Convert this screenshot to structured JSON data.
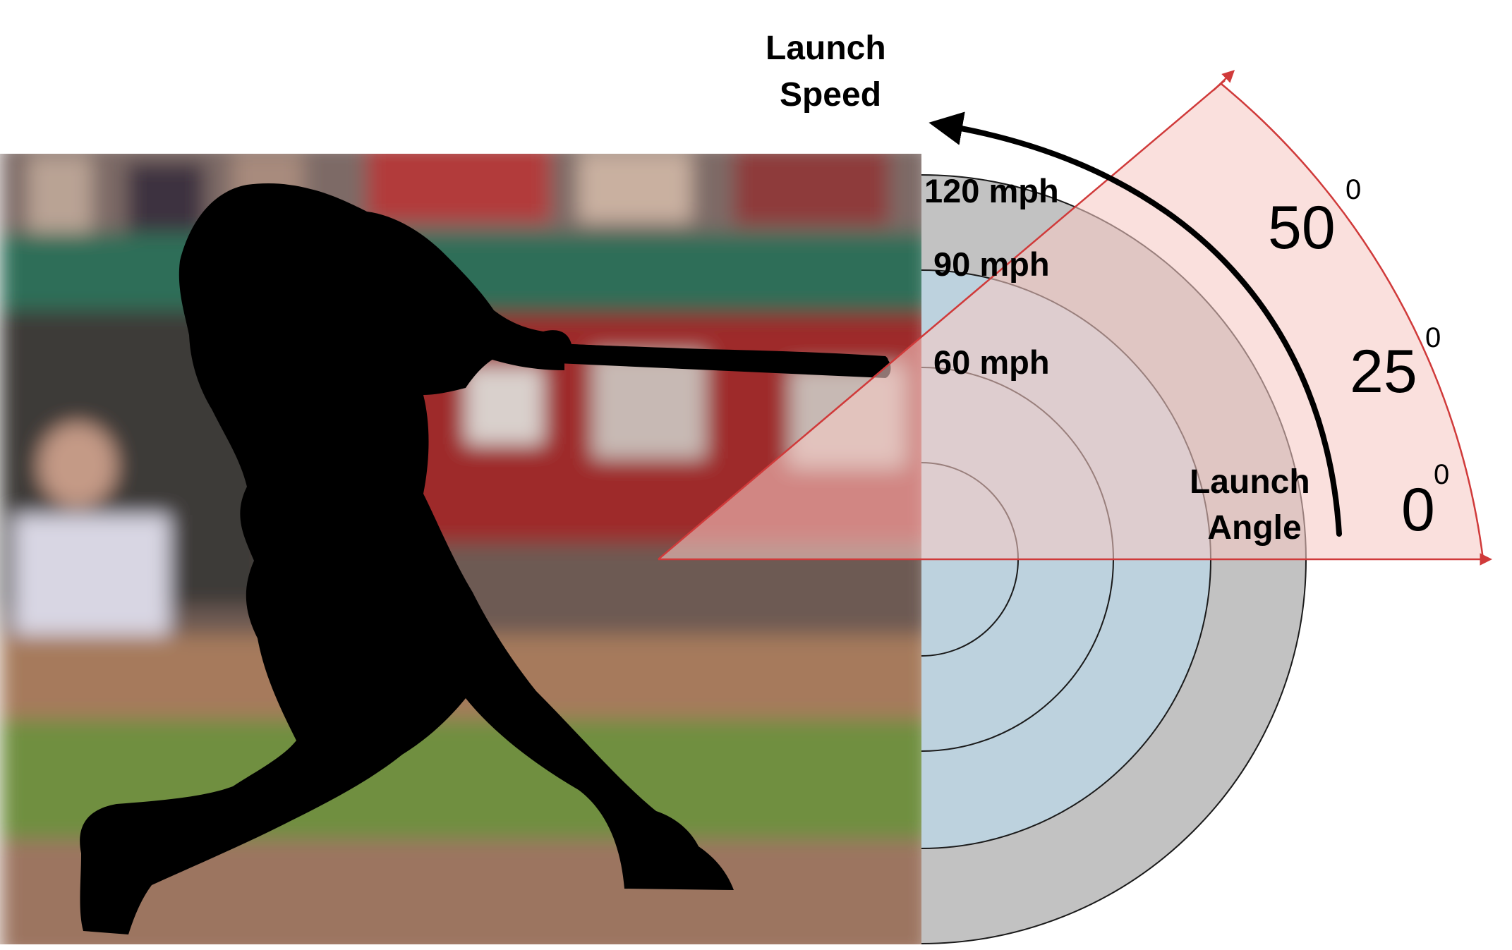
{
  "labels": {
    "launch_speed_line1": "Launch",
    "launch_speed_line2": "Speed",
    "launch_angle_line1": "Launch",
    "launch_angle_line2": "Angle"
  },
  "speed_rings": [
    {
      "label": "120 mph"
    },
    {
      "label": "90 mph"
    },
    {
      "label": "60 mph"
    }
  ],
  "angle_ticks": [
    {
      "value": "50",
      "superscript": "0"
    },
    {
      "value": "25",
      "superscript": "0"
    },
    {
      "value": "0",
      "superscript": "0"
    }
  ],
  "colors": {
    "outer_ring": "#c2c2c2",
    "inner_rings": "#bdd2de",
    "angle_wedge": "#f7c9c4",
    "wedge_edge": "#d03a3a",
    "field_green": "#6f8f3f",
    "stands_red": "#9e2b2b",
    "wall_green": "#2e6e58",
    "dirt": "#a67a5b"
  },
  "icons": {
    "batter": "batter-silhouette-icon",
    "speed_arrow": "curved-arrow-icon"
  }
}
